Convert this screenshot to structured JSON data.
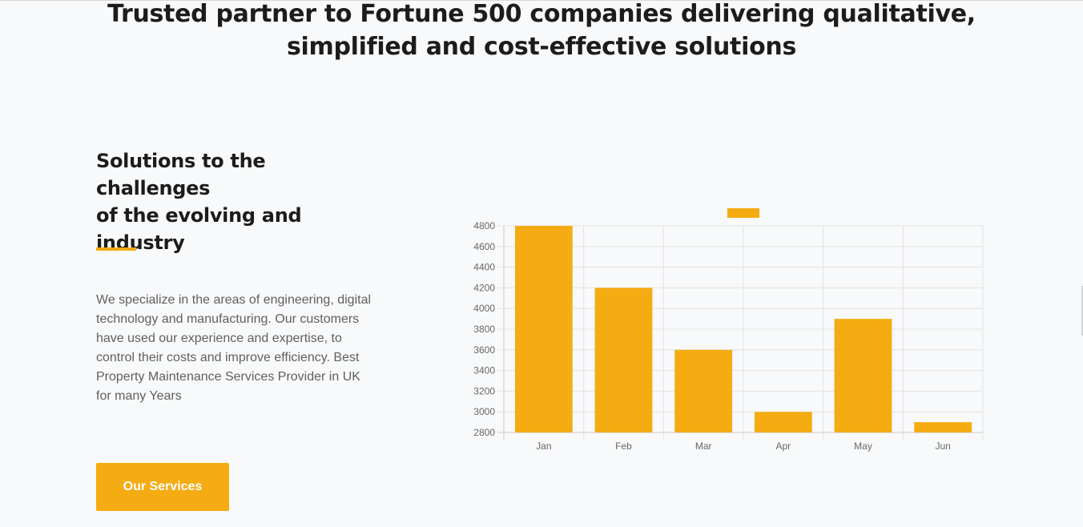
{
  "hero": {
    "title_line1": "Trusted partner to Fortune 500 companies delivering qualitative,",
    "title_line2": "simplified and cost-effective solutions"
  },
  "section": {
    "title_line1": "Solutions to the challenges",
    "title_line2": "of the evolving and",
    "title_line3": "industry",
    "description": "We specialize in the areas of engineering, digital technology and manufacturing. Our customers have used our experience and expertise, to control their costs and improve efficiency. Best Property Maintenance Services Provider in UK for many Years",
    "button_label": "Our Services"
  },
  "colors": {
    "accent": "#f4ac12",
    "background": "#f8f9fa",
    "heading": "#1c1c1c",
    "body_text": "#5f5f5f",
    "grid": "#e2e2e2"
  },
  "chart_data": {
    "type": "bar",
    "categories": [
      "Jan",
      "Feb",
      "Mar",
      "Apr",
      "May",
      "Jun"
    ],
    "series": [
      {
        "values": [
          4800,
          4200,
          3600,
          3000,
          3900,
          2900
        ],
        "color": "#f4ac12"
      }
    ],
    "y_ticks": [
      2800,
      3000,
      3200,
      3400,
      3600,
      3800,
      4000,
      4200,
      4400,
      4600,
      4800
    ],
    "ylim": [
      2800,
      4800
    ],
    "grid": true,
    "legend": "top-center"
  }
}
